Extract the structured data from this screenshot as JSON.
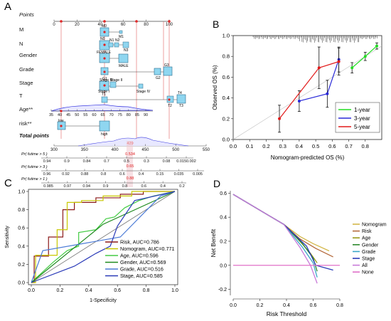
{
  "panels": {
    "a": "A",
    "b": "B",
    "c": "C",
    "d": "D"
  },
  "nomogram": {
    "row_labels": [
      "Points",
      "M",
      "N",
      "Gender",
      "Grade",
      "Stage",
      "T",
      "Age**",
      "risk**",
      "Total points"
    ],
    "points_ticks": [
      "0",
      "20",
      "40",
      "60",
      "80",
      "100"
    ],
    "m_labels": [
      "M0",
      "M1"
    ],
    "n_labels": [
      "N0",
      "N1",
      "N2",
      "N3"
    ],
    "gender_labels": [
      "FEMALE",
      "MALE"
    ],
    "grade_labels": [
      "G1",
      "G2",
      "G3"
    ],
    "stage_labels": [
      "Stage III",
      "Stage I",
      "Stage II",
      "Stage IV"
    ],
    "t_labels": [
      "T1",
      "T4",
      "T2",
      "T3"
    ],
    "age_ticks": [
      "35",
      "40",
      "45",
      "50",
      "55",
      "60",
      "65",
      "70",
      "75",
      "80",
      "85",
      "90"
    ],
    "risk_labels": [
      "low",
      "high"
    ],
    "total_ticks": [
      "300",
      "350",
      "400",
      "450",
      "500",
      "550"
    ],
    "total_highlight": "429",
    "pr5_label": "Pr( futime > 5 )",
    "pr3_label": "Pr( futime > 3 )",
    "pr1_label": "Pr( futime > 1 )",
    "pr5_ticks": [
      "0.94",
      "0.9",
      "0.84",
      "0.7",
      "0.5",
      "0.3",
      "0.08",
      "0.0150.002"
    ],
    "pr5_highlight": "0.534",
    "pr3_ticks": [
      "0.96",
      "0.92",
      "0.88",
      "0.8",
      "0.6",
      "0.4",
      "0.15",
      "0.035",
      "0.005"
    ],
    "pr3_highlight": "0.65",
    "pr1_ticks": [
      "0.985",
      "0.97",
      "0.94",
      "0.9",
      "0.8",
      "0.6",
      "0.4",
      "0.2"
    ],
    "pr1_highlight": "0.88"
  },
  "chart_data": [
    {
      "type": "line",
      "panel": "B",
      "xlabel": "Nomogram-predicted OS (%)",
      "ylabel": "Observed OS (%)",
      "xlim": [
        0.0,
        0.9
      ],
      "ylim": [
        0.0,
        1.0
      ],
      "xticks": [
        "0.0",
        "0.1",
        "0.2",
        "0.3",
        "0.4",
        "0.5",
        "0.6",
        "0.7",
        "0.8"
      ],
      "yticks": [
        "0.0",
        "0.2",
        "0.4",
        "0.6",
        "0.8",
        "1.0"
      ],
      "legend_position": "bottom-right",
      "series": [
        {
          "name": "1-year",
          "color": "#22dd22",
          "x": [
            0.72,
            0.8,
            0.87
          ],
          "y": [
            0.69,
            0.8,
            0.9
          ],
          "err": [
            0.05,
            0.04,
            0.03
          ]
        },
        {
          "name": "3-year",
          "color": "#2a2ad8",
          "x": [
            0.4,
            0.57,
            0.64
          ],
          "y": [
            0.37,
            0.44,
            0.77
          ],
          "err": [
            0.1,
            0.13,
            0.12
          ]
        },
        {
          "name": "5-year",
          "color": "#e21a1a",
          "x": [
            0.28,
            0.52,
            0.64
          ],
          "y": [
            0.2,
            0.69,
            0.75
          ],
          "err": [
            0.13,
            0.2,
            0.13
          ]
        }
      ]
    },
    {
      "type": "line",
      "panel": "C",
      "xlabel": "1-Specificity",
      "ylabel": "Sensitivity",
      "xlim": [
        0.0,
        1.0
      ],
      "ylim": [
        0.0,
        1.0
      ],
      "xticks": [
        "0.0",
        "0.2",
        "0.4",
        "0.6",
        "0.8",
        "1.0"
      ],
      "yticks": [
        "0.0",
        "0.2",
        "0.4",
        "0.6",
        "0.8",
        "1.0"
      ],
      "legend_position": "bottom-right",
      "series": [
        {
          "name": "Risk, AUC=0.786",
          "color": "#8b1a1a",
          "x": [
            0,
            0.02,
            0.02,
            0.12,
            0.12,
            0.22,
            0.22,
            0.3,
            0.3,
            0.45,
            0.45,
            0.62,
            0.62,
            0.78,
            0.78,
            0.9,
            0.9,
            1.0
          ],
          "y": [
            0,
            0,
            0.29,
            0.29,
            0.5,
            0.5,
            0.8,
            0.8,
            0.88,
            0.88,
            0.93,
            0.93,
            0.97,
            0.97,
            1.0,
            1.0,
            1.0,
            1.0
          ]
        },
        {
          "name": "Nomogram, AUC=0.771",
          "color": "#c8c800",
          "x": [
            0,
            0.03,
            0.03,
            0.18,
            0.18,
            0.25,
            0.25,
            0.35,
            0.35,
            0.5,
            0.5,
            0.7,
            0.7,
            1.0
          ],
          "y": [
            0,
            0,
            0.3,
            0.3,
            0.58,
            0.58,
            0.88,
            0.88,
            0.9,
            0.9,
            0.95,
            0.95,
            1.0,
            1.0
          ]
        },
        {
          "name": "Age, AUC=0.596",
          "color": "#44cc44",
          "x": [
            0,
            0.15,
            0.25,
            0.33,
            0.33,
            0.45,
            0.52,
            0.58,
            0.65,
            0.75,
            0.85,
            1.0
          ],
          "y": [
            0,
            0.22,
            0.35,
            0.4,
            0.55,
            0.58,
            0.7,
            0.72,
            0.82,
            0.9,
            0.95,
            1.0
          ]
        },
        {
          "name": "Gender, AUC=0.569",
          "color": "#1e8a1e",
          "x": [
            0,
            0.5,
            1.0
          ],
          "y": [
            0,
            0.64,
            1.0
          ]
        },
        {
          "name": "Grade, AUC=0.516",
          "color": "#4a7ad6",
          "x": [
            0,
            0.08,
            0.62,
            0.9,
            1.0
          ],
          "y": [
            0,
            0.35,
            0.5,
            0.95,
            1.0
          ]
        },
        {
          "name": "Stage, AUC=0.585",
          "color": "#2a3ab8",
          "x": [
            0,
            0.3,
            0.45,
            0.55,
            0.6,
            0.72,
            1.0
          ],
          "y": [
            0,
            0.18,
            0.32,
            0.4,
            0.62,
            0.9,
            1.0
          ]
        }
      ]
    },
    {
      "type": "line",
      "panel": "D",
      "xlabel": "Risk Threshold",
      "ylabel": "Net Benefit",
      "xlim": [
        0.0,
        0.8
      ],
      "ylim": [
        -0.25,
        0.62
      ],
      "xticks": [
        "0.0",
        "0.2",
        "0.4",
        "0.6",
        "0.8"
      ],
      "yticks": [
        "-0.2",
        "0.0",
        "0.2",
        "0.4",
        "0.6"
      ],
      "legend_position": "right",
      "series": [
        {
          "name": "Nomogram",
          "color": "#d4b84a",
          "x": [
            0.0,
            0.38,
            0.5,
            0.6,
            0.72
          ],
          "y": [
            0.59,
            0.34,
            0.24,
            0.18,
            0.12
          ]
        },
        {
          "name": "Risk",
          "color": "#b46a3c",
          "x": [
            0.0,
            0.38,
            0.5,
            0.62,
            0.75
          ],
          "y": [
            0.59,
            0.34,
            0.22,
            0.14,
            0.07
          ]
        },
        {
          "name": "Age",
          "color": "#9a9a1a",
          "x": [
            0.0,
            0.38,
            0.5,
            0.58,
            0.63
          ],
          "y": [
            0.59,
            0.34,
            0.2,
            0.1,
            0.02
          ]
        },
        {
          "name": "Gender",
          "color": "#2e8a2e",
          "x": [
            0.0,
            0.38,
            0.52,
            0.6,
            0.63
          ],
          "y": [
            0.59,
            0.34,
            0.18,
            0.06,
            -0.05
          ]
        },
        {
          "name": "Grade",
          "color": "#3aa6c8",
          "x": [
            0.0,
            0.38,
            0.52,
            0.6,
            0.63
          ],
          "y": [
            0.59,
            0.34,
            0.15,
            0.02,
            -0.1
          ]
        },
        {
          "name": "Stage",
          "color": "#2a3ab8",
          "x": [
            0.0,
            0.38,
            0.55,
            0.62,
            0.75
          ],
          "y": [
            0.59,
            0.34,
            0.16,
            0.0,
            -0.04
          ]
        },
        {
          "name": "All",
          "color": "#c87ad8",
          "x": [
            0.0,
            0.38,
            0.5,
            0.58,
            0.63
          ],
          "y": [
            0.59,
            0.34,
            0.15,
            0.0,
            -0.15
          ]
        },
        {
          "name": "None",
          "color": "#e070c8",
          "x": [
            0.0,
            0.8
          ],
          "y": [
            0.0,
            0.0
          ]
        }
      ]
    }
  ]
}
